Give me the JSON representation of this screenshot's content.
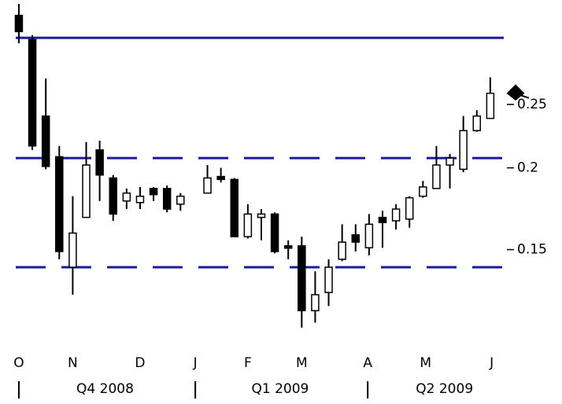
{
  "chart_data": {
    "type": "candlestick",
    "log_scale": true,
    "up_color": "#ffffff",
    "down_color": "#000000",
    "line_color": "#1a1a9c",
    "x": [
      0,
      1,
      2,
      3,
      4,
      5,
      6,
      7,
      8,
      9,
      10,
      11,
      12,
      14,
      15,
      16,
      17,
      18,
      19,
      20,
      21,
      22,
      23,
      24,
      25,
      26,
      27,
      28,
      29,
      30,
      31,
      32,
      33,
      34,
      35
    ],
    "open": [
      0.342,
      0.314,
      0.24,
      0.208,
      0.141,
      0.168,
      0.213,
      0.193,
      0.178,
      0.177,
      0.186,
      0.186,
      0.176,
      0.183,
      0.194,
      0.192,
      0.157,
      0.168,
      0.17,
      0.152,
      0.152,
      0.121,
      0.129,
      0.145,
      0.158,
      0.151,
      0.168,
      0.166,
      0.167,
      0.181,
      0.186,
      0.202,
      0.199,
      0.228,
      0.238
    ],
    "high": [
      0.356,
      0.319,
      0.274,
      0.216,
      0.181,
      0.219,
      0.22,
      0.195,
      0.186,
      0.187,
      0.187,
      0.188,
      0.183,
      0.202,
      0.2,
      0.193,
      0.176,
      0.173,
      0.171,
      0.155,
      0.157,
      0.139,
      0.145,
      0.164,
      0.164,
      0.17,
      0.172,
      0.176,
      0.181,
      0.191,
      0.216,
      0.21,
      0.24,
      0.245,
      0.275
    ],
    "low": [
      0.31,
      0.213,
      0.199,
      0.145,
      0.128,
      0.168,
      0.178,
      0.166,
      0.173,
      0.173,
      0.178,
      0.171,
      0.172,
      0.183,
      0.19,
      0.157,
      0.156,
      0.155,
      0.148,
      0.145,
      0.114,
      0.116,
      0.123,
      0.144,
      0.149,
      0.147,
      0.151,
      0.161,
      0.162,
      0.18,
      0.186,
      0.186,
      0.197,
      0.227,
      0.238
    ],
    "close": [
      0.323,
      0.216,
      0.201,
      0.149,
      0.159,
      0.202,
      0.195,
      0.17,
      0.183,
      0.181,
      0.182,
      0.173,
      0.181,
      0.193,
      0.192,
      0.157,
      0.17,
      0.17,
      0.149,
      0.151,
      0.121,
      0.128,
      0.141,
      0.154,
      0.154,
      0.164,
      0.165,
      0.173,
      0.18,
      0.187,
      0.202,
      0.207,
      0.228,
      0.24,
      0.26
    ],
    "xlim": [
      -1.4,
      36
    ],
    "ylim": [
      0.113,
      0.361
    ],
    "yticks": [
      0.25,
      0.2,
      0.15
    ],
    "xticks": [
      {
        "value": 0,
        "label": "O"
      },
      {
        "value": 4,
        "label": "N"
      },
      {
        "value": 9,
        "label": "D"
      },
      {
        "value": 13.1,
        "label": "J"
      },
      {
        "value": 17,
        "label": "F"
      },
      {
        "value": 21,
        "label": "M"
      },
      {
        "value": 25.9,
        "label": "A"
      },
      {
        "value": 30.2,
        "label": "M"
      },
      {
        "value": 35.1,
        "label": "J"
      }
    ],
    "quarter_ticks": [
      0,
      13.1,
      25.9
    ],
    "quarter_labels": [
      {
        "value": 6.4,
        "label": "Q4 2008"
      },
      {
        "value": 19.4,
        "label": "Q1 2009"
      },
      {
        "value": 31.6,
        "label": "Q2 2009"
      }
    ],
    "reference_lines": [
      {
        "value": 0.316,
        "style": "solid"
      },
      {
        "value": 0.207,
        "style": "dashed"
      },
      {
        "value": 0.141,
        "style": "dashed"
      }
    ]
  }
}
